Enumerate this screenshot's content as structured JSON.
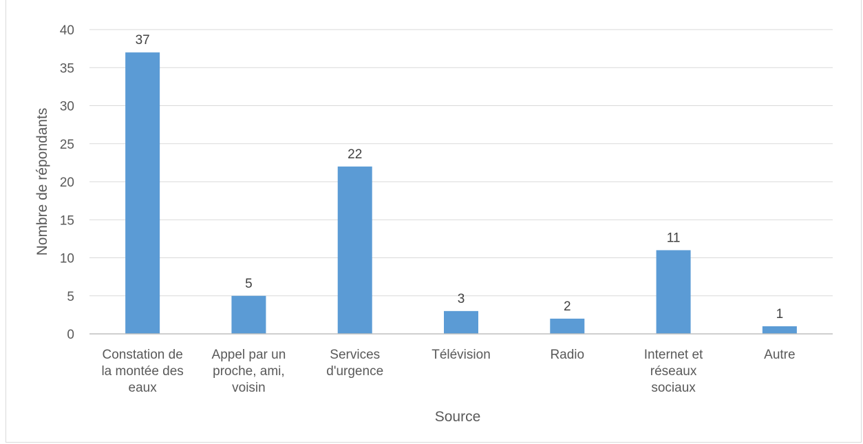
{
  "chart_data": {
    "type": "bar",
    "categories": [
      [
        "Constation de",
        "la montée des",
        "eaux"
      ],
      [
        "Appel par un",
        "proche, ami,",
        "voisin"
      ],
      [
        "Services",
        "d'urgence"
      ],
      [
        "Télévision"
      ],
      [
        "Radio"
      ],
      [
        "Internet et",
        "réseaux",
        "sociaux"
      ],
      [
        "Autre"
      ]
    ],
    "values": [
      37,
      5,
      22,
      3,
      2,
      11,
      1
    ],
    "xlabel": "Source",
    "ylabel": "Nombre de répondants",
    "ylim": [
      0,
      40
    ],
    "yticks": [
      0,
      5,
      10,
      15,
      20,
      25,
      30,
      35,
      40
    ],
    "grid": true,
    "legend": "none",
    "bar_color": "#5b9bd5",
    "grid_color": "#d9d9d9",
    "axis_color": "#bfbfbf"
  }
}
